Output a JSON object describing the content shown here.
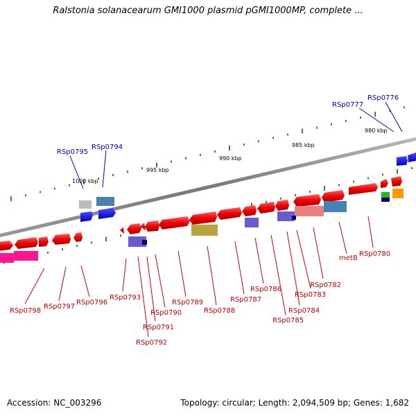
{
  "title": "Ralstonia solanacearum GMI1000 plasmid pGMI1000MP, complete ...",
  "footer": {
    "accession": "Accession: NC_003296",
    "summary": "Topology: circular; Length: 2,094,509 bp; Genes: 1,682"
  },
  "colors": {
    "backbone": "#888888",
    "red_gene": "#ee0000",
    "blue_gene": "#0000ee",
    "purple_gene": "#6a5acd",
    "olive_gene": "#b5a642",
    "steel_gene": "#4682b4",
    "pink_gene": "#ff1493",
    "salmon_gene": "#e88080",
    "tick": "#2e8b2e",
    "label_red": "#cc0000",
    "label_blue": "#0000cc"
  },
  "kbp_labels": [
    "1000 kbp",
    "995 kbp",
    "990 kbp",
    "985 kbp",
    "980 kbp"
  ],
  "gene_labels_above": [
    "RSp0795",
    "RSp0794",
    "RSp0777",
    "RSp0776"
  ],
  "gene_labels_below": [
    "RSp0798",
    "RSp0797",
    "RSp0796",
    "RSp0793",
    "RSp0792",
    "RSp0791",
    "RSp0790",
    "RSp0789",
    "RSp0788",
    "RSp0787",
    "RSp0786",
    "RSp0785",
    "RSp0784",
    "RSp0783",
    "RSp0782",
    "metB",
    "RSp0780"
  ]
}
